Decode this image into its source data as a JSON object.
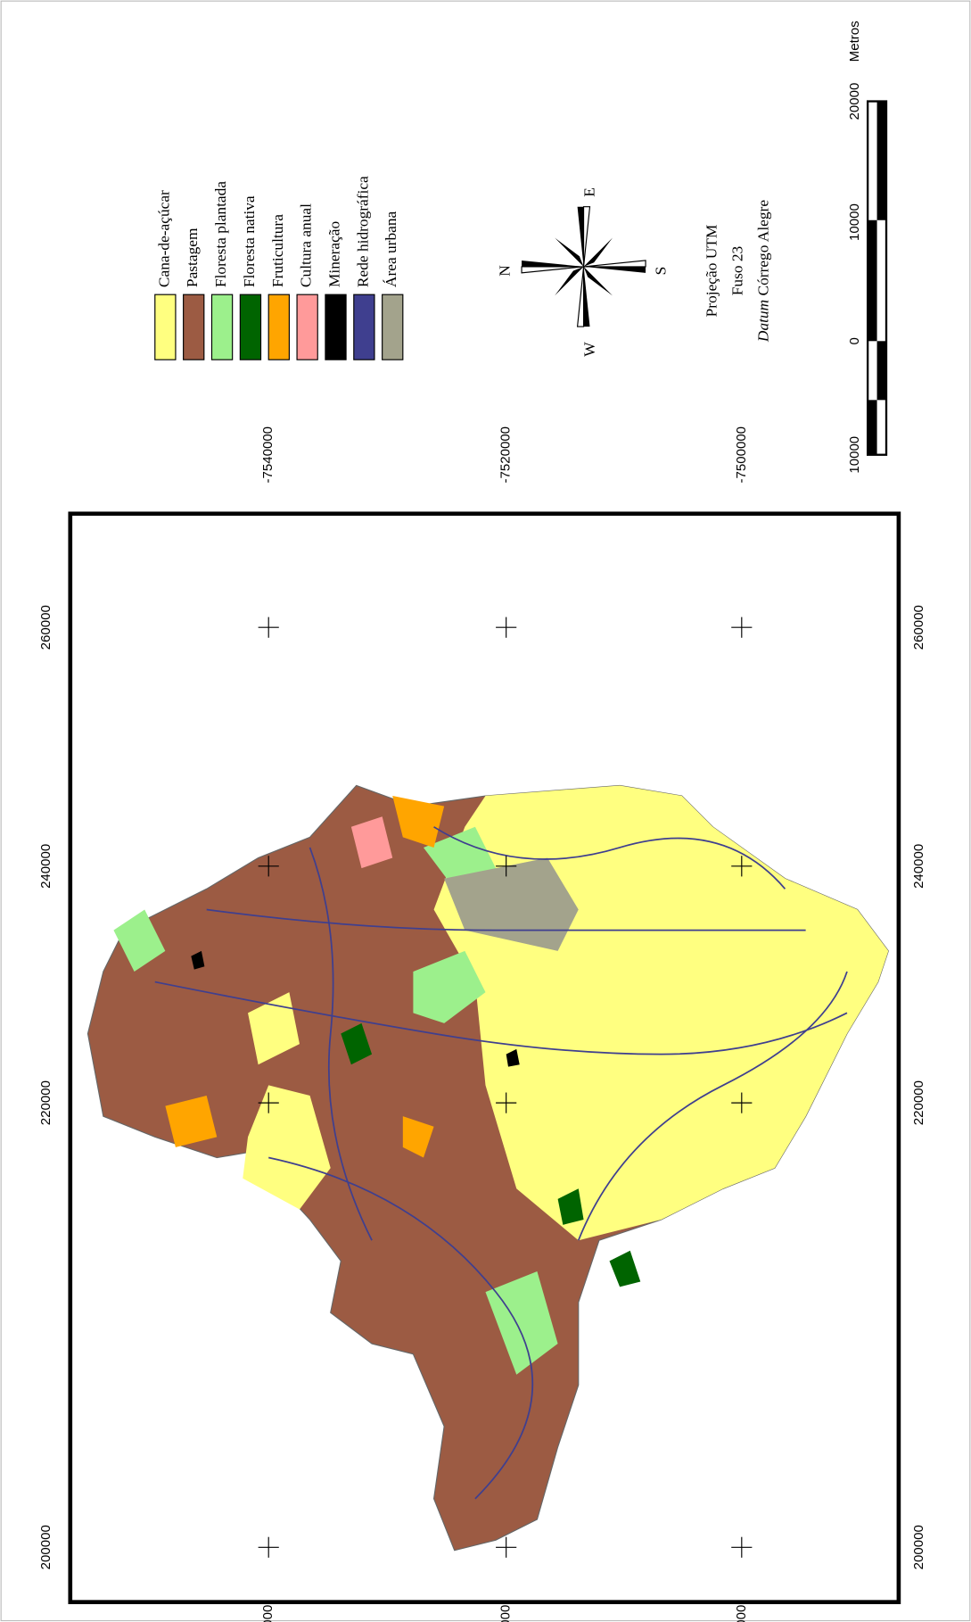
{
  "legend": {
    "items": [
      {
        "label": "Cana-de-açúcar",
        "color": "#ffff80"
      },
      {
        "label": "Pastagem",
        "color": "#9c5b43"
      },
      {
        "label": "Floresta plantada",
        "color": "#9cf08c"
      },
      {
        "label": "Floresta nativa",
        "color": "#006400"
      },
      {
        "label": "Fruticultura",
        "color": "#ffa500"
      },
      {
        "label": "Cultura anual",
        "color": "#ff9a9a"
      },
      {
        "label": "Mineração",
        "color": "#000000"
      },
      {
        "label": "Rede hidrográfica",
        "color": "#3f3f8f"
      },
      {
        "label": "Área urbana",
        "color": "#a3a38c"
      }
    ]
  },
  "compass": {
    "n": "N",
    "e": "E",
    "s": "S",
    "w": "W"
  },
  "projection": {
    "line1": "Projeção UTM",
    "line2": "Fuso 23",
    "datum_label": "Datum",
    "datum_value": "Córrego Alegre"
  },
  "scale_bar": {
    "unit": "Metros",
    "labels": [
      "10000",
      "0",
      "10000",
      "20000"
    ]
  },
  "grid": {
    "easting_labels": [
      "200000",
      "220000",
      "240000",
      "260000"
    ],
    "northing_labels": [
      "-7500000",
      "-7520000",
      "-7540000"
    ]
  }
}
